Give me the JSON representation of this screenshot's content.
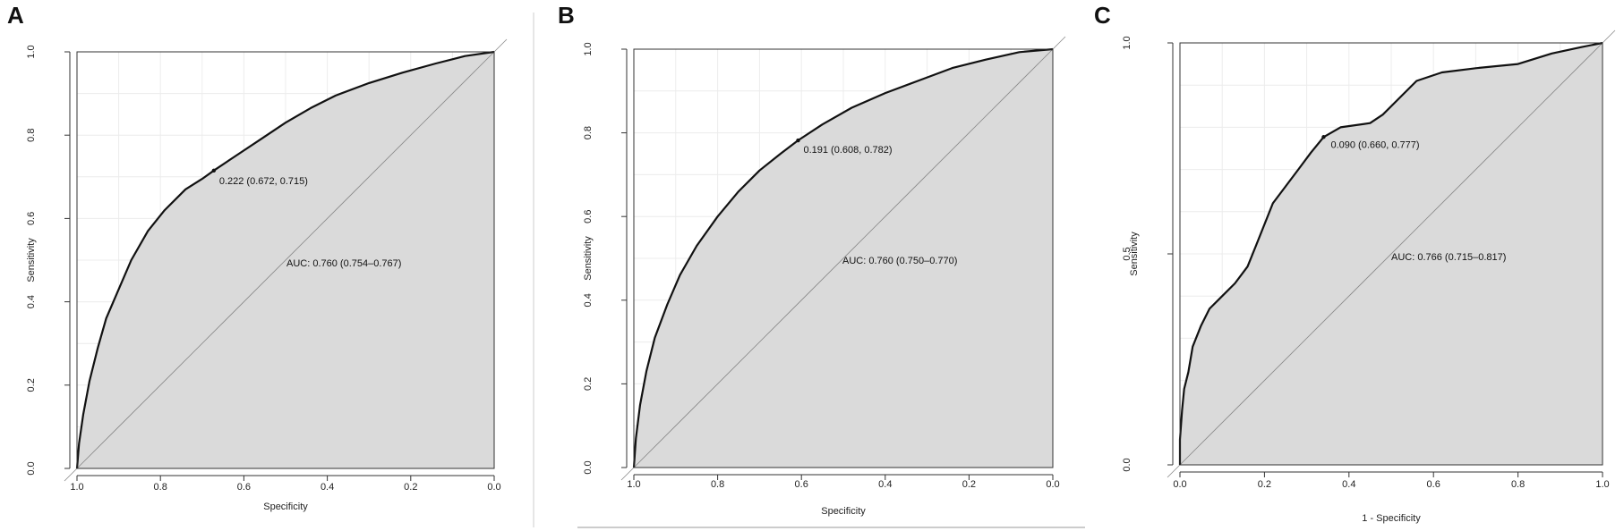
{
  "chart_data": [
    {
      "type": "line",
      "panel": "A",
      "xlabel": "Specificity",
      "ylabel": "Sensitivity",
      "x_reversed": true,
      "xlim": [
        1.0,
        0.0
      ],
      "ylim": [
        0.0,
        1.0
      ],
      "xticks": [
        1.0,
        0.8,
        0.6,
        0.4,
        0.2,
        0.0
      ],
      "xtick_labels": [
        "1.0",
        "0.8",
        "0.6",
        "0.4",
        "0.2",
        "0.0"
      ],
      "yticks": [
        0.0,
        0.2,
        0.4,
        0.6,
        0.8,
        1.0
      ],
      "ytick_labels": [
        "0.0",
        "0.2",
        "0.4",
        "0.6",
        "0.8",
        "1.0"
      ],
      "grid": true,
      "auc_label": "AUC: 0.760 (0.754–0.767)",
      "threshold_point": {
        "specificity": 0.672,
        "sensitivity": 0.715,
        "label": "0.222 (0.672, 0.715)"
      },
      "roc_points": [
        [
          1.0,
          0.0
        ],
        [
          0.995,
          0.06
        ],
        [
          0.985,
          0.13
        ],
        [
          0.97,
          0.21
        ],
        [
          0.95,
          0.29
        ],
        [
          0.93,
          0.36
        ],
        [
          0.9,
          0.43
        ],
        [
          0.87,
          0.5
        ],
        [
          0.83,
          0.57
        ],
        [
          0.79,
          0.62
        ],
        [
          0.74,
          0.67
        ],
        [
          0.7,
          0.695
        ],
        [
          0.672,
          0.715
        ],
        [
          0.62,
          0.75
        ],
        [
          0.56,
          0.79
        ],
        [
          0.5,
          0.83
        ],
        [
          0.44,
          0.865
        ],
        [
          0.38,
          0.895
        ],
        [
          0.3,
          0.925
        ],
        [
          0.22,
          0.95
        ],
        [
          0.14,
          0.972
        ],
        [
          0.07,
          0.99
        ],
        [
          0.0,
          1.0
        ]
      ]
    },
    {
      "type": "line",
      "panel": "B",
      "xlabel": "Specificity",
      "ylabel": "Sensitivity",
      "x_reversed": true,
      "xlim": [
        1.0,
        0.0
      ],
      "ylim": [
        0.0,
        1.0
      ],
      "xticks": [
        1.0,
        0.8,
        0.6,
        0.4,
        0.2,
        0.0
      ],
      "xtick_labels": [
        "1.0",
        "0.8",
        "0.6",
        "0.4",
        "0.2",
        "0.0"
      ],
      "yticks": [
        0.0,
        0.2,
        0.4,
        0.6,
        0.8,
        1.0
      ],
      "ytick_labels": [
        "0.0",
        "0.2",
        "0.4",
        "0.6",
        "0.8",
        "1.0"
      ],
      "grid": true,
      "auc_label": "AUC: 0.760 (0.750–0.770)",
      "threshold_point": {
        "specificity": 0.608,
        "sensitivity": 0.782,
        "label": "0.191 (0.608, 0.782)"
      },
      "roc_points": [
        [
          1.0,
          0.0
        ],
        [
          0.995,
          0.07
        ],
        [
          0.985,
          0.15
        ],
        [
          0.97,
          0.23
        ],
        [
          0.95,
          0.31
        ],
        [
          0.92,
          0.39
        ],
        [
          0.89,
          0.46
        ],
        [
          0.85,
          0.53
        ],
        [
          0.8,
          0.6
        ],
        [
          0.75,
          0.66
        ],
        [
          0.7,
          0.71
        ],
        [
          0.65,
          0.75
        ],
        [
          0.608,
          0.782
        ],
        [
          0.55,
          0.82
        ],
        [
          0.48,
          0.86
        ],
        [
          0.4,
          0.895
        ],
        [
          0.32,
          0.925
        ],
        [
          0.24,
          0.955
        ],
        [
          0.16,
          0.975
        ],
        [
          0.08,
          0.993
        ],
        [
          0.0,
          1.0
        ]
      ]
    },
    {
      "type": "line",
      "panel": "C",
      "xlabel": "1 - Specificity",
      "ylabel": "Sensitivity",
      "x_reversed": false,
      "xlim": [
        0.0,
        1.0
      ],
      "ylim": [
        0.0,
        1.0
      ],
      "xticks": [
        0.0,
        0.2,
        0.4,
        0.6,
        0.8,
        1.0
      ],
      "xtick_labels": [
        "0.0",
        "0.2",
        "0.4",
        "0.6",
        "0.8",
        "1.0"
      ],
      "yticks": [
        0.0,
        0.5,
        1.0
      ],
      "ytick_labels": [
        "0.0",
        "0.5",
        "1.0"
      ],
      "grid": true,
      "auc_label": "AUC: 0.766 (0.715–0.817)",
      "threshold_point": {
        "fpr": 0.34,
        "sensitivity": 0.777,
        "label": "0.090 (0.660, 0.777)"
      },
      "roc_points": [
        [
          0.0,
          0.0
        ],
        [
          0.0,
          0.06
        ],
        [
          0.005,
          0.13
        ],
        [
          0.01,
          0.18
        ],
        [
          0.02,
          0.22
        ],
        [
          0.03,
          0.28
        ],
        [
          0.05,
          0.33
        ],
        [
          0.07,
          0.37
        ],
        [
          0.1,
          0.4
        ],
        [
          0.13,
          0.43
        ],
        [
          0.16,
          0.47
        ],
        [
          0.18,
          0.52
        ],
        [
          0.2,
          0.57
        ],
        [
          0.22,
          0.62
        ],
        [
          0.25,
          0.66
        ],
        [
          0.28,
          0.7
        ],
        [
          0.31,
          0.74
        ],
        [
          0.34,
          0.777
        ],
        [
          0.38,
          0.8
        ],
        [
          0.45,
          0.81
        ],
        [
          0.48,
          0.83
        ],
        [
          0.52,
          0.87
        ],
        [
          0.56,
          0.91
        ],
        [
          0.62,
          0.93
        ],
        [
          0.7,
          0.94
        ],
        [
          0.8,
          0.95
        ],
        [
          0.88,
          0.975
        ],
        [
          0.95,
          0.99
        ],
        [
          1.0,
          1.0
        ]
      ]
    }
  ]
}
